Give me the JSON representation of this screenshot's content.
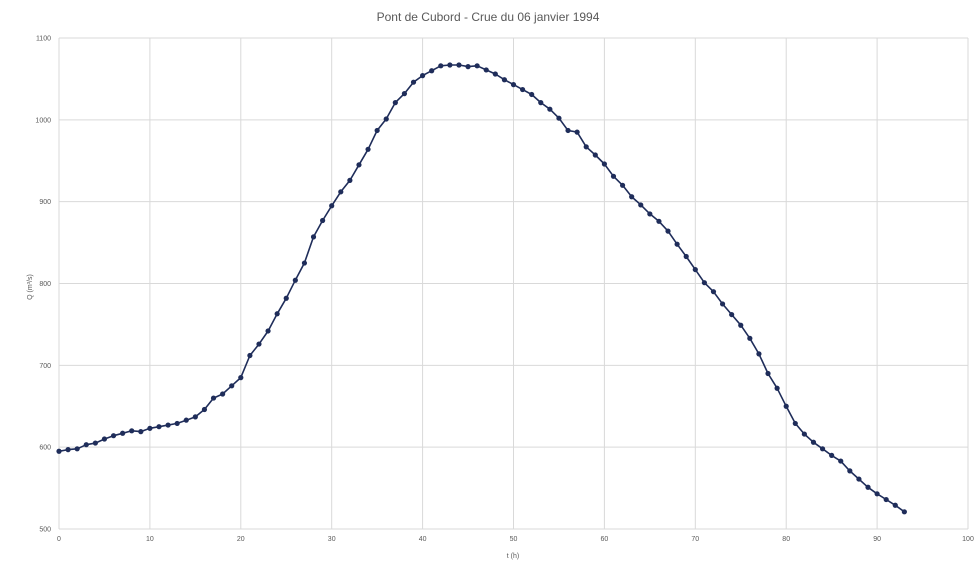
{
  "chart_data": {
    "type": "line",
    "title": "Pont de Cubord - Crue du 06 janvier 1994",
    "xlabel": "t (h)",
    "ylabel": "Q (m³/s)",
    "xlim": [
      0,
      100
    ],
    "ylim": [
      500,
      1100
    ],
    "xticks": [
      0,
      10,
      20,
      30,
      40,
      50,
      60,
      70,
      80,
      90,
      100
    ],
    "yticks": [
      500,
      600,
      700,
      800,
      900,
      1000,
      1100
    ],
    "grid": true,
    "legend": "none",
    "colors": {
      "line": "#1f2d5a",
      "marker": "#1f2d5a",
      "grid": "#d9d9d9",
      "text": "#595959"
    },
    "series": [
      {
        "x": [
          0,
          1,
          2,
          3,
          4,
          5,
          6,
          7,
          8,
          9,
          10,
          11,
          12,
          13,
          14,
          15,
          16,
          17,
          18,
          19,
          20,
          21,
          22,
          23,
          24,
          25,
          26,
          27,
          28,
          29,
          30,
          31,
          32,
          33,
          34,
          35,
          36,
          37,
          38,
          39,
          40,
          41,
          42,
          43,
          44,
          45,
          46,
          47,
          48,
          49,
          50,
          51,
          52,
          53,
          54,
          55,
          56,
          57,
          58,
          59,
          60,
          61,
          62,
          63,
          64,
          65,
          66,
          67,
          68,
          69,
          70,
          71,
          72,
          73,
          74,
          75,
          76,
          77,
          78,
          79,
          80,
          81,
          82,
          83,
          84,
          85,
          86,
          87,
          88,
          89,
          90,
          91,
          92,
          93
        ],
        "y": [
          595,
          597,
          598,
          603,
          605,
          610,
          614,
          617,
          620,
          619,
          623,
          625,
          627,
          629,
          633,
          637,
          646,
          660,
          665,
          675,
          685,
          712,
          726,
          742,
          763,
          782,
          804,
          825,
          857,
          877,
          895,
          912,
          926,
          945,
          964,
          987,
          1001,
          1021,
          1032,
          1046,
          1054,
          1060,
          1066,
          1067,
          1067,
          1065,
          1066,
          1061,
          1056,
          1049,
          1043,
          1037,
          1031,
          1021,
          1013,
          1002,
          987,
          985,
          967,
          957,
          946,
          931,
          920,
          906,
          896,
          885,
          876,
          864,
          848,
          833,
          817,
          801,
          790,
          775,
          762,
          749,
          733,
          714,
          690,
          672,
          650,
          629,
          616,
          606,
          598,
          590,
          583,
          571,
          561,
          551,
          543,
          536,
          529,
          521
        ]
      }
    ]
  }
}
